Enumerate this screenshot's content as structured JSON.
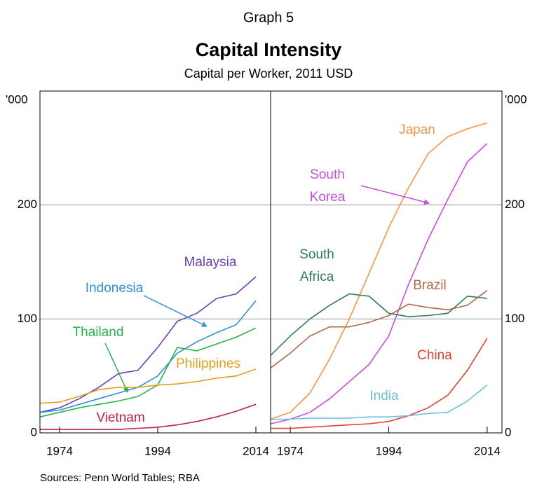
{
  "header": {
    "graph": "Graph 5",
    "title": "Capital Intensity",
    "subtitle": "Capital per Worker, 2011 USD",
    "source": "Sources:  Penn World Tables; RBA"
  },
  "chart_data": [
    {
      "type": "line",
      "y_unit": "'000",
      "x": [
        1970,
        1974,
        1978,
        1982,
        1986,
        1990,
        1994,
        1998,
        2002,
        2006,
        2010,
        2014
      ],
      "xlim": [
        1970,
        2017
      ],
      "xticks": [
        1974,
        1994,
        2014
      ],
      "ylim": [
        0,
        300
      ],
      "yticks": [
        0,
        100,
        200
      ],
      "grid": true,
      "series": [
        {
          "name": "Malaysia",
          "color": "#6a3fb5",
          "values": [
            18,
            22,
            30,
            40,
            52,
            55,
            75,
            98,
            105,
            118,
            122,
            137
          ]
        },
        {
          "name": "Indonesia",
          "color": "#2f8fd8",
          "values": [
            18,
            20,
            25,
            30,
            35,
            40,
            50,
            70,
            80,
            88,
            95,
            116
          ]
        },
        {
          "name": "Thailand",
          "color": "#27b34b",
          "values": [
            14,
            18,
            22,
            25,
            28,
            32,
            42,
            75,
            72,
            78,
            84,
            92
          ]
        },
        {
          "name": "Philippines",
          "color": "#e0a020",
          "values": [
            26,
            27,
            32,
            38,
            40,
            40,
            42,
            43,
            45,
            48,
            50,
            56
          ]
        },
        {
          "name": "Vietnam",
          "color": "#c0204a",
          "values": [
            3,
            3,
            3,
            3,
            3,
            4,
            5,
            7,
            10,
            14,
            19,
            25
          ]
        }
      ]
    },
    {
      "type": "line",
      "y_unit": "'000",
      "x": [
        1970,
        1974,
        1978,
        1982,
        1986,
        1990,
        1994,
        1998,
        2002,
        2006,
        2010,
        2014
      ],
      "xlim": [
        1970,
        2017
      ],
      "xticks": [
        1974,
        1994,
        2014
      ],
      "ylim": [
        0,
        300
      ],
      "yticks": [
        0,
        100,
        200
      ],
      "grid": true,
      "series": [
        {
          "name": "Japan",
          "color": "#f79646",
          "values": [
            12,
            18,
            35,
            65,
            100,
            140,
            180,
            215,
            245,
            260,
            267,
            272
          ]
        },
        {
          "name": "South Korea",
          "color": "#c84fd8",
          "values": [
            8,
            12,
            18,
            30,
            45,
            60,
            85,
            130,
            170,
            205,
            238,
            254
          ]
        },
        {
          "name": "South Africa",
          "color": "#2e7d5a",
          "values": [
            68,
            85,
            100,
            112,
            122,
            120,
            105,
            102,
            103,
            105,
            120,
            118
          ]
        },
        {
          "name": "Brazil",
          "color": "#b06a48",
          "values": [
            57,
            70,
            85,
            93,
            93,
            97,
            103,
            113,
            110,
            108,
            112,
            125
          ]
        },
        {
          "name": "China",
          "color": "#e84030",
          "values": [
            4,
            4,
            5,
            6,
            7,
            8,
            10,
            15,
            22,
            33,
            55,
            83
          ]
        },
        {
          "name": "India",
          "color": "#6ec0e0",
          "values": [
            12,
            12,
            13,
            13,
            13,
            14,
            14,
            15,
            17,
            18,
            28,
            42
          ]
        }
      ]
    }
  ]
}
